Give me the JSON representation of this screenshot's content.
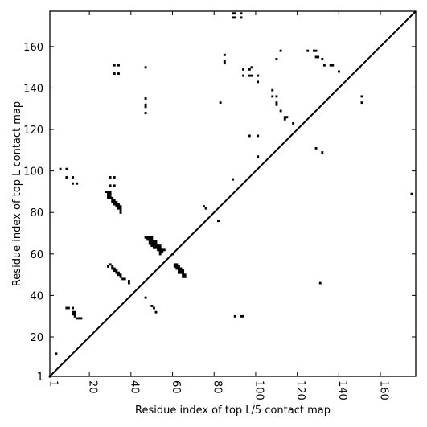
{
  "chart_data": {
    "type": "scatter",
    "title": "",
    "xlabel": "Residue index of top L/5 contact map",
    "ylabel": "Residue index of top L contact map",
    "xlim": [
      1,
      177
    ],
    "ylim": [
      1,
      177
    ],
    "xticks": [
      1,
      20,
      40,
      60,
      80,
      100,
      120,
      140,
      160
    ],
    "yticks": [
      1,
      20,
      40,
      60,
      80,
      100,
      120,
      140,
      160
    ],
    "grid": false,
    "diagonal": true,
    "marker_color": "#000000",
    "series": [
      {
        "values": [
          [
            1,
            1
          ],
          [
            60,
            60
          ],
          [
            150,
            150
          ],
          [
            4,
            12
          ],
          [
            9,
            34
          ],
          [
            10,
            34
          ],
          [
            12,
            34
          ],
          [
            12,
            31
          ],
          [
            13,
            31
          ],
          [
            13,
            30
          ],
          [
            12,
            32
          ],
          [
            13,
            32
          ],
          [
            14,
            29
          ],
          [
            15,
            29
          ],
          [
            16,
            29
          ],
          [
            6,
            101
          ],
          [
            9,
            101
          ],
          [
            9,
            97
          ],
          [
            12,
            97
          ],
          [
            12,
            94
          ],
          [
            14,
            94
          ],
          [
            29,
            54
          ],
          [
            30,
            55
          ],
          [
            31,
            54
          ],
          [
            31,
            53
          ],
          [
            32,
            53
          ],
          [
            32,
            52
          ],
          [
            33,
            52
          ],
          [
            33,
            51
          ],
          [
            34,
            51
          ],
          [
            34,
            50
          ],
          [
            35,
            49
          ],
          [
            35,
            50
          ],
          [
            36,
            48
          ],
          [
            37,
            48
          ],
          [
            39,
            47
          ],
          [
            39,
            46
          ],
          [
            28,
            90
          ],
          [
            29,
            90
          ],
          [
            30,
            90
          ],
          [
            29,
            89
          ],
          [
            30,
            89
          ],
          [
            29,
            88
          ],
          [
            30,
            88
          ],
          [
            29,
            87
          ],
          [
            30,
            87
          ],
          [
            31,
            87
          ],
          [
            31,
            86
          ],
          [
            32,
            86
          ],
          [
            31,
            85
          ],
          [
            32,
            85
          ],
          [
            33,
            85
          ],
          [
            32,
            84
          ],
          [
            33,
            84
          ],
          [
            34,
            84
          ],
          [
            33,
            83
          ],
          [
            34,
            83
          ],
          [
            35,
            83
          ],
          [
            34,
            82
          ],
          [
            35,
            82
          ],
          [
            35,
            81
          ],
          [
            35,
            80
          ],
          [
            30,
            97
          ],
          [
            32,
            97
          ],
          [
            30,
            93
          ],
          [
            32,
            93
          ],
          [
            32,
            151
          ],
          [
            34,
            151
          ],
          [
            32,
            147
          ],
          [
            34,
            147
          ],
          [
            47,
            150
          ],
          [
            47,
            135
          ],
          [
            47,
            132
          ],
          [
            47,
            131
          ],
          [
            47,
            128
          ],
          [
            47,
            68
          ],
          [
            48,
            68
          ],
          [
            49,
            68
          ],
          [
            50,
            68
          ],
          [
            48,
            67
          ],
          [
            49,
            67
          ],
          [
            50,
            67
          ],
          [
            49,
            66
          ],
          [
            50,
            66
          ],
          [
            51,
            66
          ],
          [
            52,
            66
          ],
          [
            49,
            65
          ],
          [
            50,
            65
          ],
          [
            51,
            65
          ],
          [
            52,
            65
          ],
          [
            50,
            64
          ],
          [
            51,
            64
          ],
          [
            52,
            64
          ],
          [
            53,
            64
          ],
          [
            54,
            64
          ],
          [
            51,
            63
          ],
          [
            52,
            63
          ],
          [
            53,
            63
          ],
          [
            54,
            63
          ],
          [
            53,
            62
          ],
          [
            54,
            62
          ],
          [
            55,
            62
          ],
          [
            54,
            61
          ],
          [
            55,
            61
          ],
          [
            56,
            62
          ],
          [
            54,
            60
          ],
          [
            47,
            39
          ],
          [
            50,
            35
          ],
          [
            51,
            34
          ],
          [
            52,
            32
          ],
          [
            61,
            55
          ],
          [
            62,
            55
          ],
          [
            61,
            54
          ],
          [
            62,
            54
          ],
          [
            63,
            54
          ],
          [
            62,
            53
          ],
          [
            63,
            53
          ],
          [
            64,
            53
          ],
          [
            63,
            52
          ],
          [
            64,
            52
          ],
          [
            65,
            52
          ],
          [
            63,
            51
          ],
          [
            64,
            51
          ],
          [
            65,
            51
          ],
          [
            65,
            50
          ],
          [
            66,
            50
          ],
          [
            65,
            49
          ],
          [
            66,
            49
          ],
          [
            75,
            83
          ],
          [
            76,
            82
          ],
          [
            82,
            76
          ],
          [
            83,
            133
          ],
          [
            85,
            156
          ],
          [
            85,
            153
          ],
          [
            85,
            152
          ],
          [
            89,
            176
          ],
          [
            90,
            176
          ],
          [
            93,
            176
          ],
          [
            89,
            174
          ],
          [
            90,
            174
          ],
          [
            93,
            174
          ],
          [
            89,
            96
          ],
          [
            90,
            30
          ],
          [
            93,
            30
          ],
          [
            94,
            30
          ],
          [
            94,
            149
          ],
          [
            97,
            149
          ],
          [
            94,
            146
          ],
          [
            97,
            146
          ],
          [
            98,
            146
          ],
          [
            98,
            150
          ],
          [
            101,
            146
          ],
          [
            101,
            143
          ],
          [
            97,
            117
          ],
          [
            101,
            117
          ],
          [
            101,
            107
          ],
          [
            108,
            139
          ],
          [
            108,
            136
          ],
          [
            110,
            136
          ],
          [
            110,
            133
          ],
          [
            110,
            132
          ],
          [
            110,
            154
          ],
          [
            112,
            158
          ],
          [
            112,
            129
          ],
          [
            114,
            126
          ],
          [
            115,
            126
          ],
          [
            114,
            125
          ],
          [
            118,
            123
          ],
          [
            125,
            158
          ],
          [
            128,
            158
          ],
          [
            129,
            158
          ],
          [
            129,
            155
          ],
          [
            130,
            155
          ],
          [
            132,
            154
          ],
          [
            133,
            151
          ],
          [
            136,
            151
          ],
          [
            137,
            151
          ],
          [
            140,
            148
          ],
          [
            129,
            111
          ],
          [
            132,
            109
          ],
          [
            131,
            46
          ],
          [
            151,
            136
          ],
          [
            151,
            133
          ],
          [
            175,
            89
          ]
        ]
      }
    ]
  }
}
